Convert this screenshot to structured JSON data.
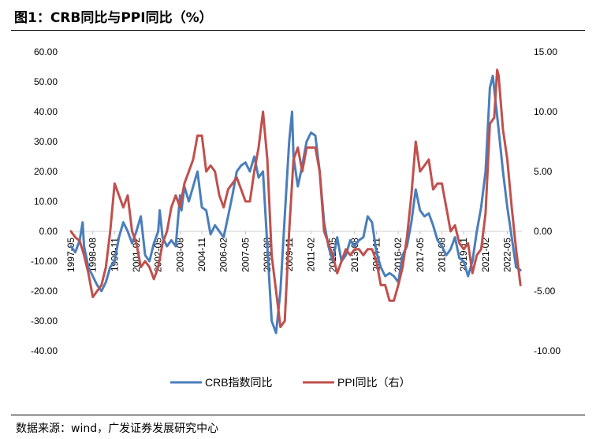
{
  "figure": {
    "title": "图1：CRB同比与PPI同比（%）",
    "source": "数据来源：wind，广发证券发展研究中心"
  },
  "chart_data": {
    "type": "line",
    "title": "图1：CRB同比与PPI同比（%）",
    "x_tick_labels": [
      "1997-05",
      "1998-08",
      "1999-11",
      "2001-02",
      "2002-05",
      "2003-08",
      "2004-11",
      "2006-02",
      "2007-05",
      "2008-08",
      "2009-11",
      "2011-02",
      "2012-05",
      "2013-08",
      "2014-11",
      "2016-02",
      "2017-05",
      "2018-08",
      "2019-11",
      "2021-02",
      "2022-05"
    ],
    "y_left": {
      "ticks": [
        "60.00",
        "50.00",
        "40.00",
        "30.00",
        "20.00",
        "10.00",
        "0.00",
        "-10.00",
        "-20.00",
        "-30.00",
        "-40.00"
      ],
      "ylim": [
        -40,
        60
      ]
    },
    "y_right": {
      "ticks": [
        "15.00",
        "10.00",
        "5.00",
        "0.00",
        "-5.00",
        "-10.00"
      ],
      "ylim": [
        -10,
        15
      ]
    },
    "xlim": [
      "1997-05",
      "2023-03"
    ],
    "grid": false,
    "legend_position": "bottom",
    "series": [
      {
        "name": "CRB指数同比",
        "color": "#4A7EBB",
        "axis": "left",
        "points": [
          [
            "1997-05",
            -5
          ],
          [
            "1997-08",
            -7
          ],
          [
            "1997-11",
            -3
          ],
          [
            "1998-01",
            3
          ],
          [
            "1998-02",
            -5
          ],
          [
            "1998-05",
            -12
          ],
          [
            "1998-08",
            -15
          ],
          [
            "1998-11",
            -18
          ],
          [
            "1999-02",
            -20
          ],
          [
            "1999-05",
            -17
          ],
          [
            "1999-08",
            -12
          ],
          [
            "1999-11",
            -10
          ],
          [
            "2000-02",
            -2
          ],
          [
            "2000-05",
            3
          ],
          [
            "2000-08",
            0
          ],
          [
            "2000-11",
            -4
          ],
          [
            "2001-02",
            0
          ],
          [
            "2001-05",
            5
          ],
          [
            "2001-08",
            -8
          ],
          [
            "2001-11",
            -10
          ],
          [
            "2002-02",
            -4
          ],
          [
            "2002-05",
            0
          ],
          [
            "2002-06",
            7
          ],
          [
            "2002-08",
            -2
          ],
          [
            "2002-11",
            -5
          ],
          [
            "2003-02",
            -3
          ],
          [
            "2003-05",
            -5
          ],
          [
            "2003-08",
            12
          ],
          [
            "2003-09",
            7
          ],
          [
            "2003-11",
            15
          ],
          [
            "2004-02",
            10
          ],
          [
            "2004-05",
            15
          ],
          [
            "2004-08",
            20
          ],
          [
            "2004-11",
            8
          ],
          [
            "2005-02",
            7
          ],
          [
            "2005-05",
            -1
          ],
          [
            "2005-08",
            2
          ],
          [
            "2005-11",
            0
          ],
          [
            "2006-02",
            -2
          ],
          [
            "2006-05",
            5
          ],
          [
            "2006-08",
            12
          ],
          [
            "2006-11",
            20
          ],
          [
            "2007-02",
            22
          ],
          [
            "2007-05",
            23
          ],
          [
            "2007-08",
            20
          ],
          [
            "2007-11",
            25
          ],
          [
            "2008-02",
            18
          ],
          [
            "2008-05",
            20
          ],
          [
            "2008-08",
            -5
          ],
          [
            "2008-11",
            -30
          ],
          [
            "2009-02",
            -34
          ],
          [
            "2009-05",
            -20
          ],
          [
            "2009-08",
            5
          ],
          [
            "2009-11",
            30
          ],
          [
            "2010-01",
            40
          ],
          [
            "2010-02",
            25
          ],
          [
            "2010-05",
            15
          ],
          [
            "2010-08",
            22
          ],
          [
            "2010-11",
            30
          ],
          [
            "2011-02",
            33
          ],
          [
            "2011-05",
            32
          ],
          [
            "2011-08",
            20
          ],
          [
            "2011-11",
            3
          ],
          [
            "2012-02",
            -5
          ],
          [
            "2012-05",
            -10
          ],
          [
            "2012-08",
            -2
          ],
          [
            "2012-11",
            -10
          ],
          [
            "2013-02",
            -8
          ],
          [
            "2013-05",
            -3
          ],
          [
            "2013-08",
            -5
          ],
          [
            "2013-11",
            -3
          ],
          [
            "2014-02",
            -2
          ],
          [
            "2014-05",
            5
          ],
          [
            "2014-08",
            3
          ],
          [
            "2014-11",
            -7
          ],
          [
            "2015-02",
            -12
          ],
          [
            "2015-05",
            -15
          ],
          [
            "2015-08",
            -14
          ],
          [
            "2015-11",
            -15
          ],
          [
            "2016-02",
            -17
          ],
          [
            "2016-05",
            -8
          ],
          [
            "2016-08",
            -5
          ],
          [
            "2016-11",
            3
          ],
          [
            "2017-02",
            14
          ],
          [
            "2017-05",
            7
          ],
          [
            "2017-08",
            5
          ],
          [
            "2017-11",
            6
          ],
          [
            "2018-02",
            2
          ],
          [
            "2018-05",
            -3
          ],
          [
            "2018-08",
            -5
          ],
          [
            "2018-11",
            -8
          ],
          [
            "2019-02",
            -6
          ],
          [
            "2019-05",
            -2
          ],
          [
            "2019-08",
            -9
          ],
          [
            "2019-11",
            -10
          ],
          [
            "2020-02",
            -15
          ],
          [
            "2020-05",
            -10
          ],
          [
            "2020-08",
            0
          ],
          [
            "2020-11",
            8
          ],
          [
            "2021-02",
            20
          ],
          [
            "2021-05",
            48
          ],
          [
            "2021-07",
            52
          ],
          [
            "2021-11",
            34
          ],
          [
            "2022-02",
            20
          ],
          [
            "2022-05",
            8
          ],
          [
            "2022-08",
            -2
          ],
          [
            "2022-11",
            -12
          ],
          [
            "2023-02",
            -13
          ]
        ]
      },
      {
        "name": "PPI同比（右）",
        "color": "#C0504D",
        "axis": "right",
        "points": [
          [
            "1997-05",
            0
          ],
          [
            "1997-08",
            -0.5
          ],
          [
            "1997-11",
            -0.8
          ],
          [
            "1998-02",
            -2
          ],
          [
            "1998-05",
            -3.5
          ],
          [
            "1998-08",
            -5.5
          ],
          [
            "1998-11",
            -5
          ],
          [
            "1999-02",
            -4.5
          ],
          [
            "1999-05",
            -3
          ],
          [
            "1999-08",
            0
          ],
          [
            "1999-11",
            4
          ],
          [
            "2000-02",
            3
          ],
          [
            "2000-05",
            2
          ],
          [
            "2000-08",
            3
          ],
          [
            "2000-11",
            0
          ],
          [
            "2001-02",
            -1
          ],
          [
            "2001-05",
            -3
          ],
          [
            "2001-08",
            -2.5
          ],
          [
            "2001-11",
            -3
          ],
          [
            "2002-02",
            -4
          ],
          [
            "2002-05",
            -3
          ],
          [
            "2002-08",
            -1
          ],
          [
            "2002-11",
            0
          ],
          [
            "2003-02",
            2
          ],
          [
            "2003-05",
            3
          ],
          [
            "2003-08",
            2
          ],
          [
            "2003-11",
            4
          ],
          [
            "2004-02",
            5
          ],
          [
            "2004-05",
            6
          ],
          [
            "2004-08",
            8
          ],
          [
            "2004-11",
            8
          ],
          [
            "2005-02",
            5
          ],
          [
            "2005-05",
            5.5
          ],
          [
            "2005-08",
            5
          ],
          [
            "2005-11",
            3
          ],
          [
            "2006-02",
            2
          ],
          [
            "2006-05",
            3.5
          ],
          [
            "2006-08",
            4
          ],
          [
            "2006-11",
            4.5
          ],
          [
            "2007-02",
            3.5
          ],
          [
            "2007-05",
            2.5
          ],
          [
            "2007-08",
            2.5
          ],
          [
            "2007-11",
            5
          ],
          [
            "2008-02",
            7
          ],
          [
            "2008-05",
            10
          ],
          [
            "2008-08",
            6
          ],
          [
            "2008-11",
            -2
          ],
          [
            "2009-02",
            -5
          ],
          [
            "2009-05",
            -8
          ],
          [
            "2009-08",
            -7.5
          ],
          [
            "2009-11",
            0
          ],
          [
            "2010-02",
            6
          ],
          [
            "2010-05",
            7
          ],
          [
            "2010-08",
            5
          ],
          [
            "2010-11",
            7
          ],
          [
            "2011-02",
            7
          ],
          [
            "2011-05",
            7
          ],
          [
            "2011-08",
            5
          ],
          [
            "2011-11",
            0
          ],
          [
            "2012-02",
            -1
          ],
          [
            "2012-05",
            -2
          ],
          [
            "2012-08",
            -3.5
          ],
          [
            "2012-11",
            -2.5
          ],
          [
            "2013-02",
            -1.5
          ],
          [
            "2013-05",
            -2
          ],
          [
            "2013-08",
            -1.5
          ],
          [
            "2013-11",
            -1.5
          ],
          [
            "2014-02",
            -2
          ],
          [
            "2014-05",
            -1.5
          ],
          [
            "2014-08",
            -1.5
          ],
          [
            "2014-11",
            -2.5
          ],
          [
            "2015-02",
            -4.5
          ],
          [
            "2015-05",
            -4.5
          ],
          [
            "2015-08",
            -5.8
          ],
          [
            "2015-11",
            -5.8
          ],
          [
            "2016-02",
            -4.5
          ],
          [
            "2016-05",
            -3
          ],
          [
            "2016-08",
            -0.5
          ],
          [
            "2016-11",
            3
          ],
          [
            "2017-02",
            7.5
          ],
          [
            "2017-05",
            5
          ],
          [
            "2017-08",
            5.5
          ],
          [
            "2017-11",
            6
          ],
          [
            "2018-02",
            3.5
          ],
          [
            "2018-05",
            4
          ],
          [
            "2018-08",
            4
          ],
          [
            "2018-11",
            2
          ],
          [
            "2019-02",
            0
          ],
          [
            "2019-05",
            0.5
          ],
          [
            "2019-08",
            -1
          ],
          [
            "2019-11",
            -1.5
          ],
          [
            "2020-02",
            -1
          ],
          [
            "2020-05",
            -3.5
          ],
          [
            "2020-08",
            -2
          ],
          [
            "2020-11",
            -1.5
          ],
          [
            "2021-02",
            1.5
          ],
          [
            "2021-05",
            9
          ],
          [
            "2021-08",
            9.5
          ],
          [
            "2021-10",
            13.5
          ],
          [
            "2021-11",
            13
          ],
          [
            "2022-02",
            8.5
          ],
          [
            "2022-05",
            6
          ],
          [
            "2022-08",
            2
          ],
          [
            "2022-11",
            -1.5
          ],
          [
            "2023-02",
            -4.5
          ]
        ]
      }
    ]
  }
}
